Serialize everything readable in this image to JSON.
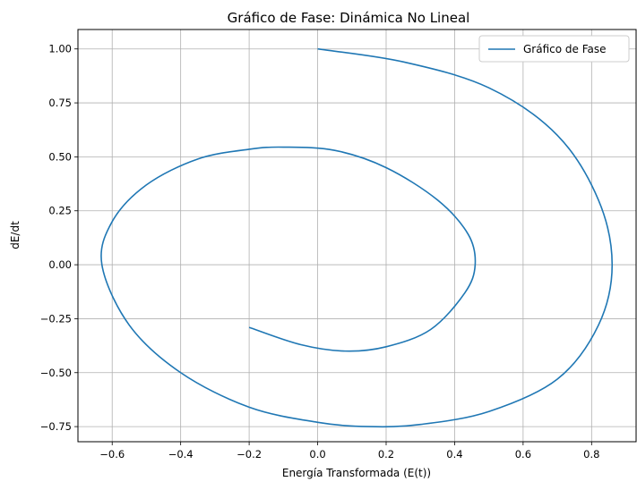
{
  "chart_data": {
    "type": "line",
    "title": "Gráfico de Fase: Dinámica No Lineal",
    "xlabel": "Energía Transformada (E(t))",
    "ylabel": "dE/dt",
    "xlim": [
      -0.7,
      0.93
    ],
    "ylim": [
      -0.82,
      1.09
    ],
    "xticks": [
      -0.6,
      -0.4,
      -0.2,
      0.0,
      0.2,
      0.4,
      0.6,
      0.8
    ],
    "xtick_labels": [
      "−0.6",
      "−0.4",
      "−0.2",
      "0.0",
      "0.2",
      "0.4",
      "0.6",
      "0.8"
    ],
    "yticks": [
      -0.75,
      -0.5,
      -0.25,
      0.0,
      0.25,
      0.5,
      0.75,
      1.0
    ],
    "ytick_labels": [
      "−0.75",
      "−0.50",
      "−0.25",
      "0.00",
      "0.25",
      "0.50",
      "0.75",
      "1.00"
    ],
    "grid": true,
    "legend_position": "top-right",
    "series": [
      {
        "name": "Gráfico de Fase",
        "color": "#1f77b4",
        "x": [
          0.0,
          0.25,
          0.5,
          0.7,
          0.82,
          0.86,
          0.82,
          0.7,
          0.5,
          0.3,
          0.15,
          0.0,
          -0.2,
          -0.4,
          -0.55,
          -0.63,
          -0.6,
          -0.5,
          -0.35,
          -0.2,
          -0.1,
          0.05,
          0.2,
          0.35,
          0.44,
          0.46,
          0.43,
          0.33,
          0.2,
          0.08,
          -0.05,
          -0.2
        ],
        "y": [
          1.0,
          0.94,
          0.82,
          0.6,
          0.3,
          0.0,
          -0.28,
          -0.53,
          -0.68,
          -0.74,
          -0.75,
          -0.73,
          -0.66,
          -0.5,
          -0.28,
          0.0,
          0.2,
          0.37,
          0.49,
          0.535,
          0.545,
          0.53,
          0.45,
          0.3,
          0.14,
          0.0,
          -0.13,
          -0.3,
          -0.38,
          -0.4,
          -0.37,
          -0.29
        ]
      }
    ]
  }
}
